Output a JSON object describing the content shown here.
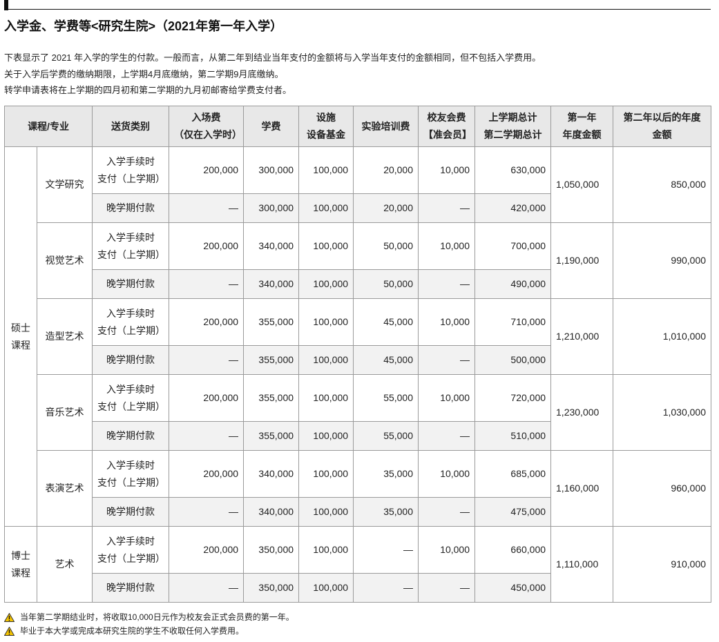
{
  "header": {
    "title": "入学金、学费等<研究生院>（2021年第一年入学）"
  },
  "intro": [
    "下表显示了 2021 年入学的学生的付款。一般而言，从第二年到结业当年支付的金额将与入学当年支付的金额相同，但不包括入学费用。",
    "关于入学后学费的缴纳期限，上学期4月底缴纳，第二学期9月底缴纳。",
    "转学申请表将在上学期的四月初和第二学期的九月初邮寄给学费支付者。"
  ],
  "table": {
    "head": [
      "课程/专业",
      "送货类别",
      "入场费\n（仅在入学时）",
      "学费",
      "设施\n设备基金",
      "实验培训费",
      "校友会费\n【准会员】",
      "上学期总计\n第二学期总计",
      "第一年\n年度金额",
      "第二年以后的年度\n金额"
    ],
    "groups": [
      {
        "label": "硕士\n课程",
        "programs": [
          {
            "name": "文学研究",
            "rows": [
              {
                "type": "入学手续时\n支付（上学期）",
                "cells": [
                  "200,000",
                  "300,000",
                  "100,000",
                  "20,000",
                  "10,000",
                  "630,000"
                ]
              },
              {
                "type": "晚学期付款",
                "cells": [
                  "—",
                  "300,000",
                  "100,000",
                  "20,000",
                  "—",
                  "420,000"
                ]
              }
            ],
            "year1": "1,050,000",
            "year2": "850,000"
          },
          {
            "name": "视觉艺术",
            "rows": [
              {
                "type": "入学手续时\n支付（上学期）",
                "cells": [
                  "200,000",
                  "340,000",
                  "100,000",
                  "50,000",
                  "10,000",
                  "700,000"
                ]
              },
              {
                "type": "晚学期付款",
                "cells": [
                  "—",
                  "340,000",
                  "100,000",
                  "50,000",
                  "—",
                  "490,000"
                ]
              }
            ],
            "year1": "1,190,000",
            "year2": "990,000"
          },
          {
            "name": "造型艺术",
            "rows": [
              {
                "type": "入学手续时\n支付（上学期）",
                "cells": [
                  "200,000",
                  "355,000",
                  "100,000",
                  "45,000",
                  "10,000",
                  "710,000"
                ]
              },
              {
                "type": "晚学期付款",
                "cells": [
                  "—",
                  "355,000",
                  "100,000",
                  "45,000",
                  "—",
                  "500,000"
                ]
              }
            ],
            "year1": "1,210,000",
            "year2": "1,010,000"
          },
          {
            "name": "音乐艺术",
            "rows": [
              {
                "type": "入学手续时\n支付（上学期）",
                "cells": [
                  "200,000",
                  "355,000",
                  "100,000",
                  "55,000",
                  "10,000",
                  "720,000"
                ]
              },
              {
                "type": "晚学期付款",
                "cells": [
                  "—",
                  "355,000",
                  "100,000",
                  "55,000",
                  "—",
                  "510,000"
                ]
              }
            ],
            "year1": "1,230,000",
            "year2": "1,030,000"
          },
          {
            "name": "表演艺术",
            "rows": [
              {
                "type": "入学手续时\n支付（上学期）",
                "cells": [
                  "200,000",
                  "340,000",
                  "100,000",
                  "35,000",
                  "10,000",
                  "685,000"
                ]
              },
              {
                "type": "晚学期付款",
                "cells": [
                  "—",
                  "340,000",
                  "100,000",
                  "35,000",
                  "—",
                  "475,000"
                ]
              }
            ],
            "year1": "1,160,000",
            "year2": "960,000"
          }
        ]
      },
      {
        "label": "博士\n课程",
        "programs": [
          {
            "name": "艺术",
            "rows": [
              {
                "type": "入学手续时\n支付（上学期）",
                "cells": [
                  "200,000",
                  "350,000",
                  "100,000",
                  "—",
                  "10,000",
                  "660,000"
                ]
              },
              {
                "type": "晚学期付款",
                "cells": [
                  "—",
                  "350,000",
                  "100,000",
                  "—",
                  "—",
                  "450,000"
                ]
              }
            ],
            "year1": "1,110,000",
            "year2": "910,000"
          }
        ]
      }
    ]
  },
  "notes": [
    "当年第二学期结业时，将收取10,000日元作为校友会正式会员费的第一年。",
    "毕业于本大学或完成本研究生院的学生不收取任何入学费用。"
  ]
}
